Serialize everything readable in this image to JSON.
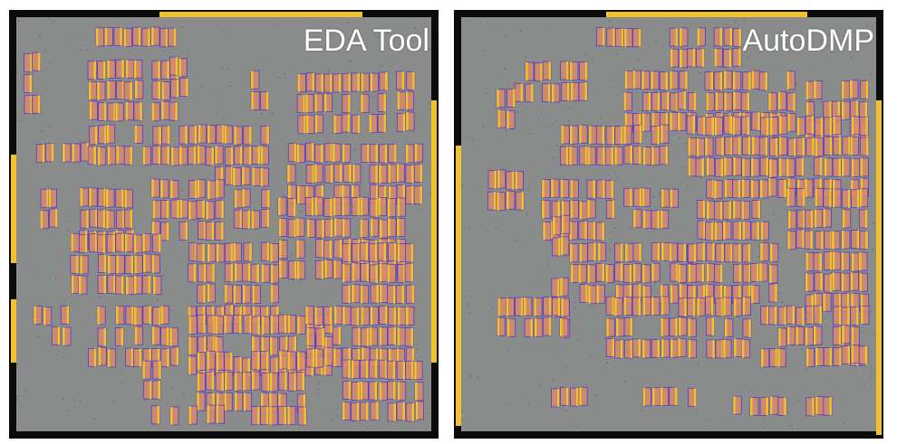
{
  "panels": [
    {
      "id": "left",
      "label": "EDA Tool"
    },
    {
      "id": "right",
      "label": "AutoDMP"
    }
  ],
  "colors": {
    "background": "#ffffff",
    "frame": "#0b0b0b",
    "die": "#8a8c8b",
    "macro_fill": "#d98a6a",
    "macro_outline": "#4a3cc9",
    "macro_stripe": "#f2c12e",
    "io_pad": "#f2c12e",
    "label_text": "#ffffff"
  }
}
